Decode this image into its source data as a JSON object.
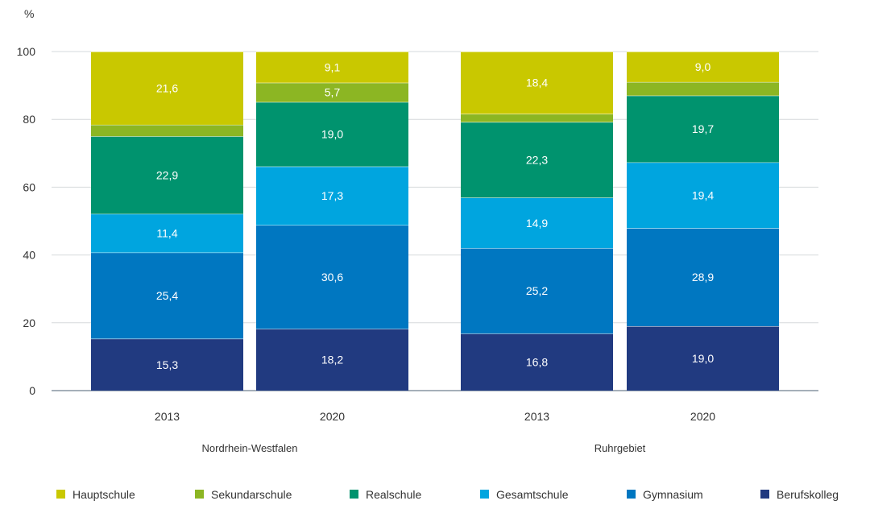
{
  "chart_data": {
    "type": "stacked-bar",
    "y_unit": "%",
    "ylim": [
      0,
      100
    ],
    "yticks": [
      0,
      20,
      40,
      60,
      80,
      100
    ],
    "grid": true,
    "legend_position": "bottom",
    "groups": [
      "Nordrhein-Westfalen",
      "Ruhrgebiet"
    ],
    "categories": [
      "2013",
      "2020",
      "2013",
      "2020"
    ],
    "category_group": [
      0,
      0,
      1,
      1
    ],
    "series": [
      {
        "name": "Berufskolleg",
        "color": "#213a80",
        "values": [
          15.3,
          18.2,
          16.8,
          19.0
        ],
        "labels": [
          "15,3",
          "18,2",
          "16,8",
          "19,0"
        ]
      },
      {
        "name": "Gymnasium",
        "color": "#0077c1",
        "values": [
          25.4,
          30.6,
          25.2,
          28.9
        ],
        "labels": [
          "25,4",
          "30,6",
          "25,2",
          "28,9"
        ]
      },
      {
        "name": "Gesamtschule",
        "color": "#00a5df",
        "values": [
          11.4,
          17.3,
          14.9,
          19.4
        ],
        "labels": [
          "11,4",
          "17,3",
          "14,9",
          "19,4"
        ]
      },
      {
        "name": "Realschule",
        "color": "#00936e",
        "values": [
          22.9,
          19.0,
          22.3,
          19.7
        ],
        "labels": [
          "22,9",
          "19,0",
          "22,3",
          "19,7"
        ]
      },
      {
        "name": "Sekundarschule",
        "color": "#8cb623",
        "values": [
          3.4,
          5.7,
          2.4,
          4.0
        ],
        "labels": [
          "",
          "5,7",
          "",
          ""
        ]
      },
      {
        "name": "Hauptschule",
        "color": "#c9c800",
        "values": [
          21.6,
          9.1,
          18.4,
          9.0
        ],
        "labels": [
          "21,6",
          "9,1",
          "18,4",
          "9,0"
        ]
      }
    ],
    "legend_order": [
      "Hauptschule",
      "Sekundarschule",
      "Realschule",
      "Gesamtschule",
      "Gymnasium",
      "Berufskolleg"
    ]
  }
}
